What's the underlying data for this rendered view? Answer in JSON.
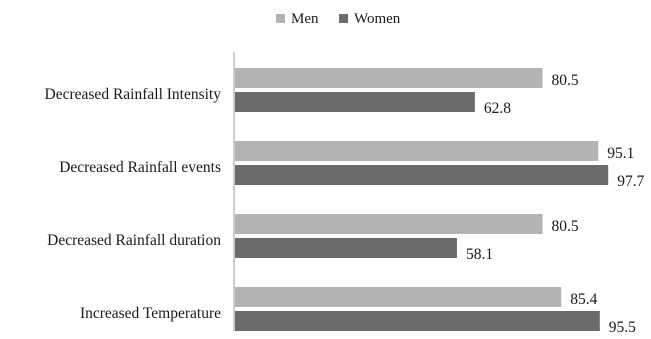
{
  "chart_data": {
    "type": "bar",
    "orientation": "horizontal",
    "categories": [
      "Decreased Rainfall Intensity",
      "Decreased Rainfall events",
      "Decreased Rainfall duration",
      "Increased Temperature"
    ],
    "series": [
      {
        "name": "Men",
        "color": "#b3b3b3",
        "values": [
          80.5,
          95.1,
          80.5,
          85.4
        ]
      },
      {
        "name": "Women",
        "color": "#6b6b6b",
        "values": [
          62.8,
          97.7,
          58.1,
          95.5
        ]
      }
    ],
    "xlim": [
      0,
      100
    ],
    "grid": false,
    "legend_position": "top-center",
    "data_labels": true
  }
}
